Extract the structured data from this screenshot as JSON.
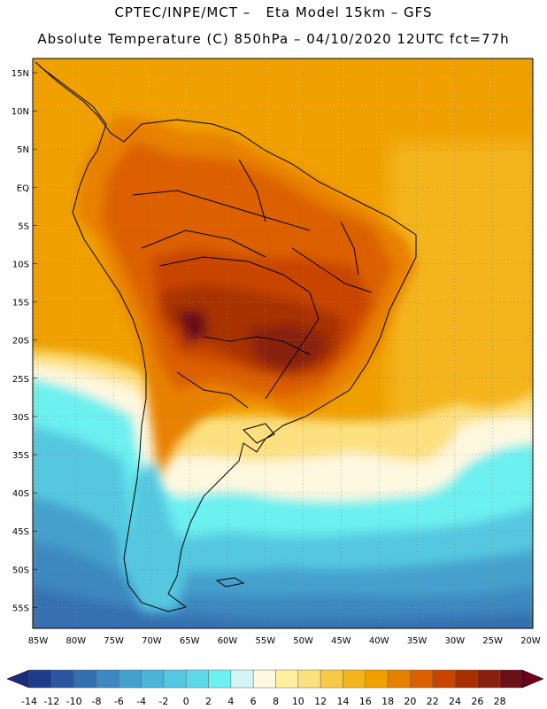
{
  "header": {
    "line1": "CPTEC/INPE/MCT –   Eta Model 15km – GFS",
    "line2": "Absolute Temperature (C) 850hPa – 04/10/2020 12UTC fct=77h"
  },
  "map": {
    "lat_labels": [
      "15N",
      "10N",
      "5N",
      "EQ",
      "5S",
      "10S",
      "15S",
      "20S",
      "25S",
      "30S",
      "35S",
      "40S",
      "45S",
      "50S",
      "55S"
    ],
    "lon_labels": [
      "85W",
      "80W",
      "75W",
      "70W",
      "65W",
      "60W",
      "55W",
      "50W",
      "45W",
      "40W",
      "35W",
      "30W",
      "25W",
      "20W"
    ]
  },
  "colorbar": {
    "labels": [
      "-14",
      "-12",
      "-10",
      "-8",
      "-6",
      "-4",
      "-2",
      "0",
      "2",
      "4",
      "6",
      "8",
      "10",
      "12",
      "14",
      "16",
      "18",
      "20",
      "22",
      "24",
      "26",
      "28"
    ],
    "colors": [
      "#1e3c8c",
      "#2a55a0",
      "#3470b0",
      "#3c88c0",
      "#44a0cc",
      "#4cb4d8",
      "#54c8e0",
      "#5cd8e8",
      "#6cf0f0",
      "#d4f4f8",
      "#fff8e0",
      "#fff0a0",
      "#fce080",
      "#f8c848",
      "#f4b41c",
      "#f0a000",
      "#e88000",
      "#dc6000",
      "#c84400",
      "#a83000",
      "#882010",
      "#6a1018"
    ],
    "left_arrow_color": "#1a2c7c",
    "right_arrow_color": "#6a0020"
  }
}
